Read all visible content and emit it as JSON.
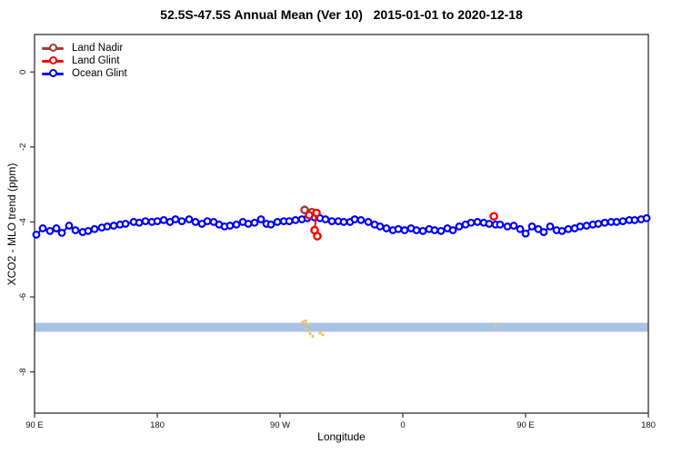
{
  "title": "52.5S-47.5S Annual Mean (Ver 10)   2015-01-01 to 2020-12-18",
  "axes": {
    "x": {
      "label": "Longitude",
      "range": [
        -270,
        180
      ],
      "ticks": [
        {
          "value": -270,
          "label": "90 E"
        },
        {
          "value": -180,
          "label": "180"
        },
        {
          "value": -90,
          "label": "90 W"
        },
        {
          "value": 0,
          "label": "0"
        },
        {
          "value": 90,
          "label": "90 E"
        },
        {
          "value": 180,
          "label": "180"
        }
      ]
    },
    "y": {
      "label": "XCO2 - MLO trend (ppm)",
      "range": [
        -9.1,
        1.0
      ],
      "ticks": [
        {
          "value": 0,
          "label": "0"
        },
        {
          "value": -2,
          "label": "-2"
        },
        {
          "value": -4,
          "label": "-4"
        },
        {
          "value": -6,
          "label": "-6"
        },
        {
          "value": -8,
          "label": "-8"
        }
      ]
    }
  },
  "legend": [
    {
      "label": "Land Nadir",
      "color": "#A33A3A"
    },
    {
      "label": "Land Glint",
      "color": "#FF0000"
    },
    {
      "label": "Ocean Glint",
      "color": "#0000FF"
    }
  ],
  "chart_data": {
    "type": "line",
    "xlabel": "Longitude",
    "ylabel": "XCO2 - MLO trend (ppm)",
    "xlim": [
      -270,
      180
    ],
    "ylim": [
      -9.1,
      1.0
    ],
    "grid": false,
    "legend_position": "top-left",
    "series": [
      {
        "name": "Land Nadir",
        "color": "#A33A3A",
        "marker": "open-circle",
        "segments": [
          [
            [
              -72,
              -3.68
            ],
            [
              -66.7,
              -3.74
            ]
          ]
        ]
      },
      {
        "name": "Land Glint",
        "color": "#FF0000",
        "marker": "open-circle",
        "segments": [
          [
            [
              -68.7,
              -3.82
            ],
            [
              -63.3,
              -3.76
            ],
            [
              -64.7,
              -4.22
            ],
            [
              -62.7,
              -4.38
            ]
          ],
          [
            [
              66.7,
              -3.85
            ]
          ]
        ]
      },
      {
        "name": "Ocean Glint",
        "color": "#0000FF",
        "marker": "open-circle",
        "segments": [
          [
            [
              -268.7,
              -4.34
            ],
            [
              -264,
              -4.17
            ],
            [
              -258.7,
              -4.24
            ],
            [
              -254,
              -4.17
            ],
            [
              -250,
              -4.29
            ],
            [
              -244.7,
              -4.1
            ],
            [
              -240,
              -4.22
            ],
            [
              -234.7,
              -4.27
            ],
            [
              -230.7,
              -4.24
            ],
            [
              -226,
              -4.19
            ],
            [
              -220.7,
              -4.15
            ],
            [
              -216.7,
              -4.12
            ],
            [
              -212,
              -4.1
            ],
            [
              -207.3,
              -4.07
            ],
            [
              -203.3,
              -4.05
            ],
            [
              -197.3,
              -4.0
            ],
            [
              -193.3,
              -4.02
            ],
            [
              -188.7,
              -3.98
            ],
            [
              -184,
              -4.0
            ],
            [
              -180,
              -3.98
            ],
            [
              -175.3,
              -3.95
            ],
            [
              -170.7,
              -4.0
            ],
            [
              -166.7,
              -3.93
            ],
            [
              -162,
              -3.98
            ],
            [
              -156.7,
              -3.93
            ],
            [
              -152,
              -4.0
            ],
            [
              -147.3,
              -4.05
            ],
            [
              -143.3,
              -3.98
            ],
            [
              -138.7,
              -4.0
            ],
            [
              -134.7,
              -4.07
            ],
            [
              -130.7,
              -4.12
            ],
            [
              -126.7,
              -4.1
            ],
            [
              -122,
              -4.07
            ],
            [
              -117.3,
              -4.0
            ],
            [
              -113.3,
              -4.05
            ],
            [
              -108.7,
              -4.02
            ],
            [
              -104,
              -3.93
            ],
            [
              -100,
              -4.05
            ],
            [
              -96.7,
              -4.07
            ],
            [
              -92,
              -4.0
            ],
            [
              -87.3,
              -3.98
            ],
            [
              -83.3,
              -3.98
            ],
            [
              -78.7,
              -3.95
            ],
            [
              -74,
              -3.93
            ],
            [
              -70,
              -3.9
            ],
            [
              -64.7,
              -3.88
            ],
            [
              -60.7,
              -3.9
            ],
            [
              -56.7,
              -3.93
            ],
            [
              -52,
              -3.98
            ],
            [
              -47.3,
              -3.98
            ],
            [
              -43.3,
              -4.0
            ],
            [
              -38.7,
              -4.0
            ],
            [
              -35.3,
              -3.93
            ],
            [
              -30.7,
              -3.95
            ],
            [
              -25.3,
              -4.0
            ],
            [
              -20.7,
              -4.07
            ],
            [
              -16.7,
              -4.12
            ],
            [
              -12,
              -4.17
            ],
            [
              -7.3,
              -4.22
            ],
            [
              -3.3,
              -4.19
            ],
            [
              1.3,
              -4.22
            ],
            [
              6,
              -4.17
            ],
            [
              10,
              -4.22
            ],
            [
              14.7,
              -4.24
            ],
            [
              19.3,
              -4.19
            ],
            [
              23.3,
              -4.22
            ],
            [
              28,
              -4.24
            ],
            [
              32.7,
              -4.17
            ],
            [
              36.7,
              -4.22
            ],
            [
              41.3,
              -4.12
            ],
            [
              46,
              -4.07
            ],
            [
              50,
              -4.02
            ],
            [
              54.7,
              -4.0
            ],
            [
              59.3,
              -4.02
            ],
            [
              63.3,
              -4.05
            ],
            [
              68,
              -4.07
            ],
            [
              71.3,
              -4.07
            ],
            [
              76.7,
              -4.12
            ],
            [
              81.3,
              -4.1
            ],
            [
              86,
              -4.19
            ],
            [
              90,
              -4.31
            ],
            [
              94.7,
              -4.12
            ],
            [
              99.3,
              -4.19
            ],
            [
              103.3,
              -4.27
            ],
            [
              108,
              -4.12
            ],
            [
              112.7,
              -4.22
            ],
            [
              116.7,
              -4.24
            ],
            [
              121.3,
              -4.19
            ],
            [
              126,
              -4.17
            ],
            [
              130,
              -4.12
            ],
            [
              134.7,
              -4.1
            ],
            [
              139.3,
              -4.07
            ],
            [
              143.3,
              -4.05
            ],
            [
              148,
              -4.02
            ],
            [
              152.7,
              -4.0
            ],
            [
              156.7,
              -4.0
            ],
            [
              161.3,
              -3.98
            ],
            [
              166,
              -3.95
            ],
            [
              170,
              -3.95
            ],
            [
              174.7,
              -3.93
            ],
            [
              178.7,
              -3.9
            ]
          ]
        ]
      }
    ],
    "coverage_band": {
      "color": "#A9C2E3",
      "lon_range": [
        -270,
        180
      ],
      "value_range": [
        -6.93,
        -6.69
      ]
    },
    "coverage_marks": {
      "color": "#F6C45A",
      "points": [
        [
          -73.3,
          -6.67
        ],
        [
          -71.3,
          -6.64
        ],
        [
          -70.7,
          -6.86
        ],
        [
          -69.3,
          -6.74
        ],
        [
          -68,
          -6.98
        ],
        [
          -66,
          -7.05
        ],
        [
          -60.7,
          -6.96
        ],
        [
          -58.7,
          -7.01
        ],
        [
          68,
          -6.76
        ]
      ]
    }
  }
}
